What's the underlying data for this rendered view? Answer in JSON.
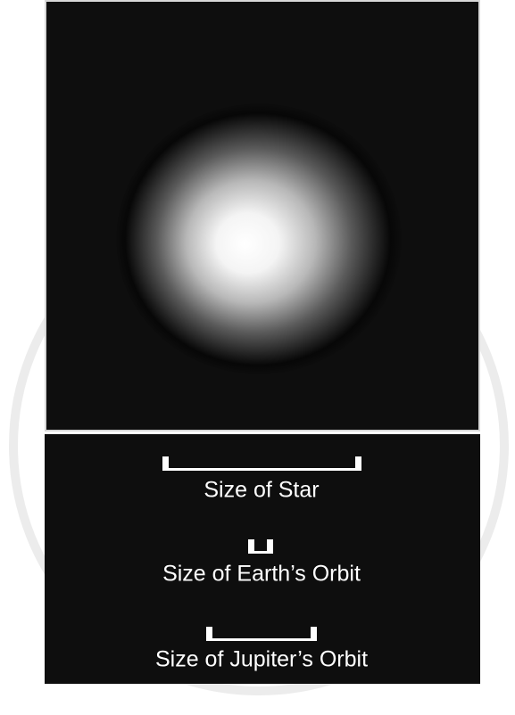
{
  "scale_labels": [
    "Size of Star",
    "Size of Earth’s Orbit",
    "Size of Jupiter’s Orbit"
  ]
}
